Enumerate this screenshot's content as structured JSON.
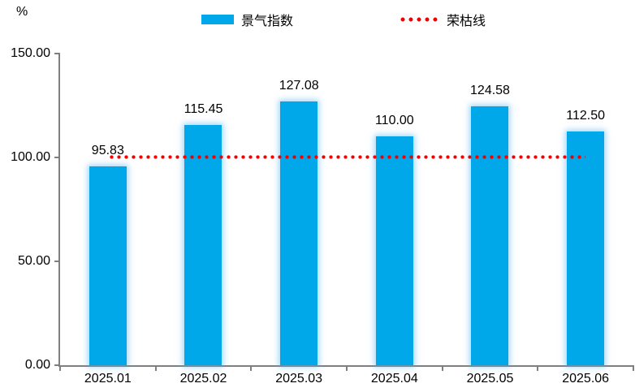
{
  "unit_label": "%",
  "legend": {
    "bar_series_label": "景气指数",
    "line_series_label": "荣枯线"
  },
  "colors": {
    "bar": "#00A7E9",
    "bar_glow": "rgba(80,180,240,0.55)",
    "threshold_line": "#EE0000",
    "axis": "#7f7f7f",
    "text": "#000000"
  },
  "chart_data": {
    "type": "bar",
    "title": "",
    "xlabel": "",
    "ylabel": "%",
    "categories": [
      "2025.01",
      "2025.02",
      "2025.03",
      "2025.04",
      "2025.05",
      "2025.06"
    ],
    "series": [
      {
        "name": "景气指数",
        "type": "bar",
        "values": [
          95.83,
          115.45,
          127.08,
          110.0,
          124.58,
          112.5
        ]
      },
      {
        "name": "荣枯线",
        "type": "line",
        "line_style": "dotted",
        "values": [
          100,
          100,
          100,
          100,
          100,
          100
        ]
      }
    ],
    "data_labels": [
      "95.83",
      "115.45",
      "127.08",
      "110.00",
      "124.58",
      "112.50"
    ],
    "ylim": [
      0,
      150
    ],
    "ytick_labels": [
      "0.00",
      "50.00",
      "100.00",
      "150.00"
    ],
    "ytick_values": [
      0,
      50,
      100,
      150
    ],
    "grid": false,
    "legend_position": "top"
  }
}
